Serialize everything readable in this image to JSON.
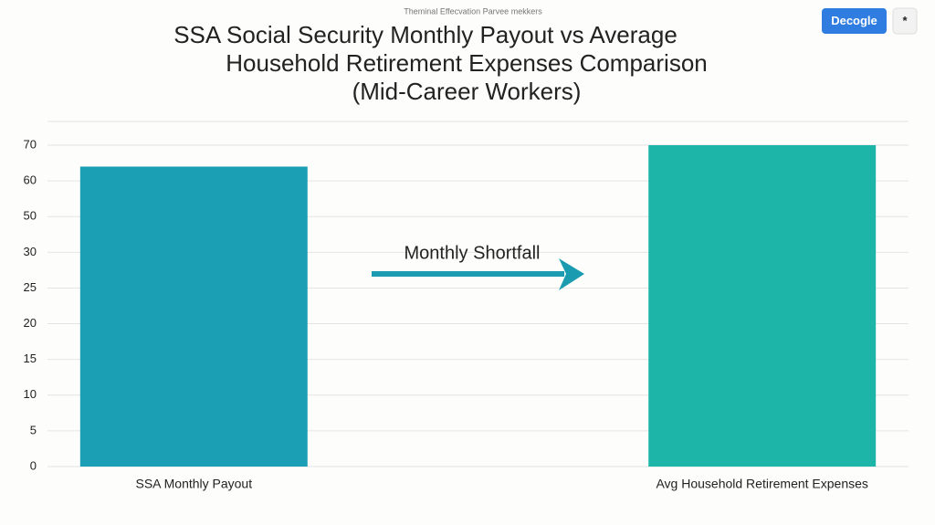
{
  "header": {
    "caption": "Theminal Effecvation Parvee mekkers",
    "button": "Decogle",
    "icon_button": "*"
  },
  "chart_data": {
    "type": "bar",
    "title": [
      "SSA Social Security Monthly Payout vs Average",
      "Household Retirement Expenses Comparison",
      "(Mid-Career Workers)"
    ],
    "categories": [
      "SSA Monthly Payout",
      "Avg Household Retirement Expenses"
    ],
    "values": [
      64,
      70
    ],
    "colors": [
      "#1a9fb5",
      "#1db5a8"
    ],
    "ylim": [
      0,
      70
    ],
    "yticks": [
      0,
      5,
      10,
      15,
      20,
      25,
      30,
      50,
      60,
      70
    ],
    "grid": true,
    "annotation": {
      "text": "Monthly Shortfall",
      "color": "#1a9bb0"
    }
  }
}
